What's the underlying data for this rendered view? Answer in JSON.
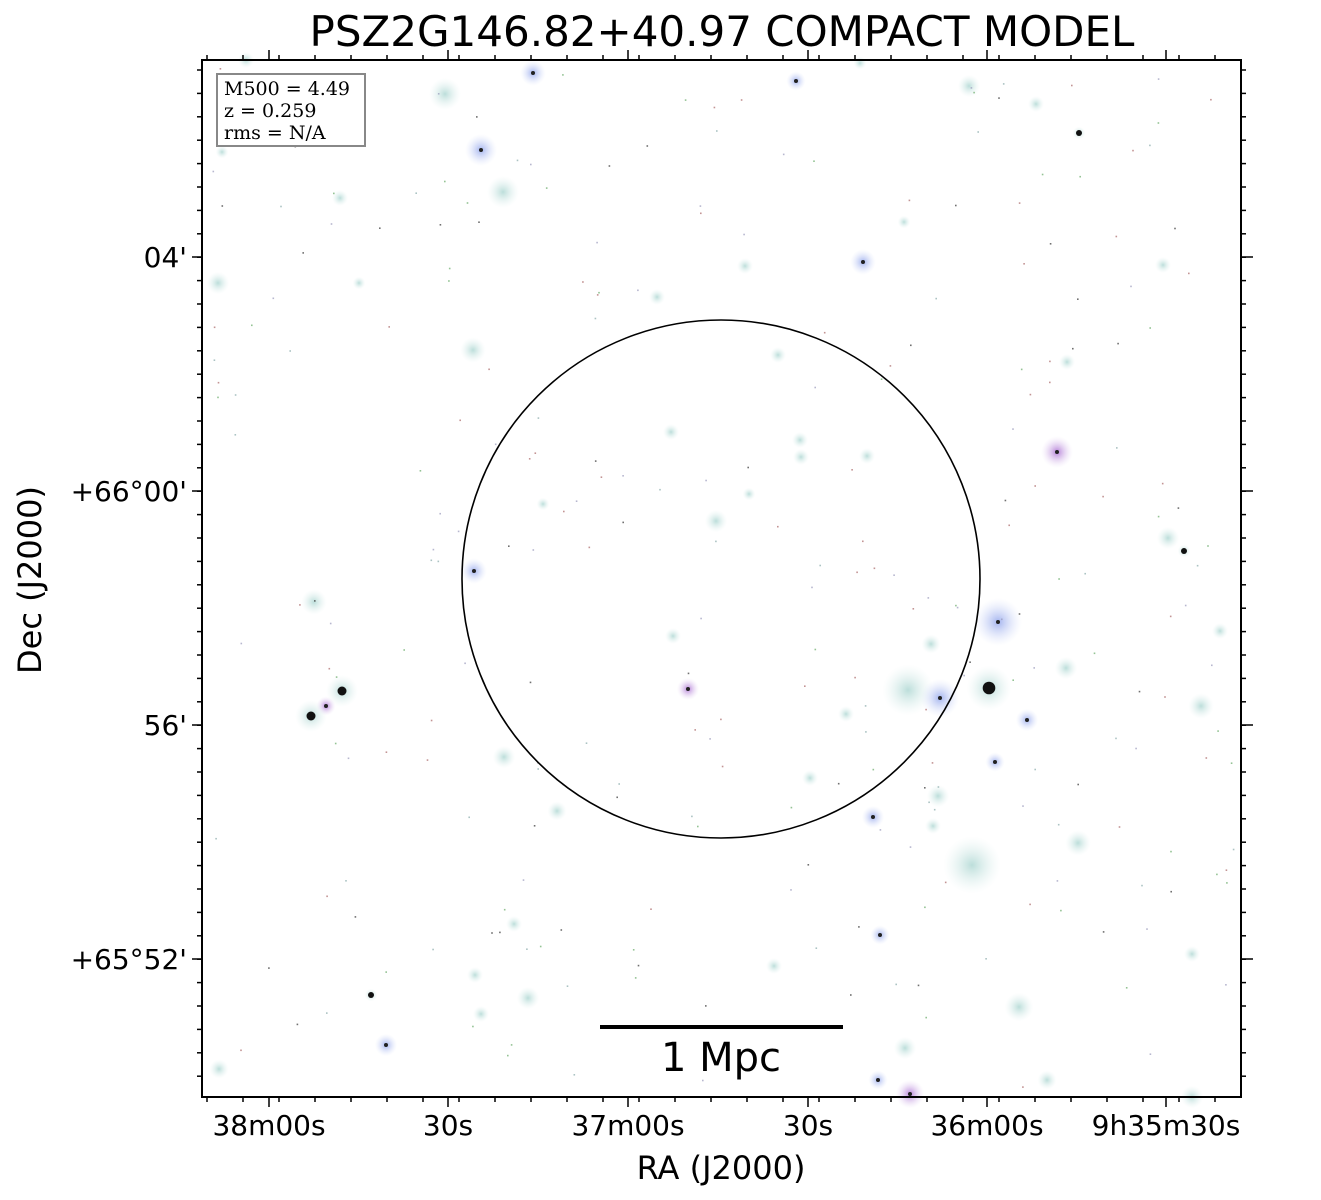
{
  "title": "PSZ2G146.82+40.97 COMPACT MODEL",
  "axes": {
    "xlabel": "RA (J2000)",
    "ylabel": "Dec (J2000)",
    "x_ticks": [
      "38m00s",
      "30s",
      "37m00s",
      "30s",
      "36m00s",
      "9h35m30s"
    ],
    "y_ticks": [
      "04'",
      "+66°00'",
      "56'",
      "+65°52'"
    ]
  },
  "info": {
    "mass": "M500 = 4.49",
    "redshift": "z = 0.259",
    "rms": "rms = N/A"
  },
  "scalebar": {
    "label": "1 Mpc"
  },
  "colors": {
    "frame": "#000000",
    "source_halo": "#cfe8e6",
    "source_blue": "#aeb9ee",
    "source_core": "#111111",
    "infobox_border": "#888888"
  },
  "overlay": {
    "aperture": "circle"
  }
}
